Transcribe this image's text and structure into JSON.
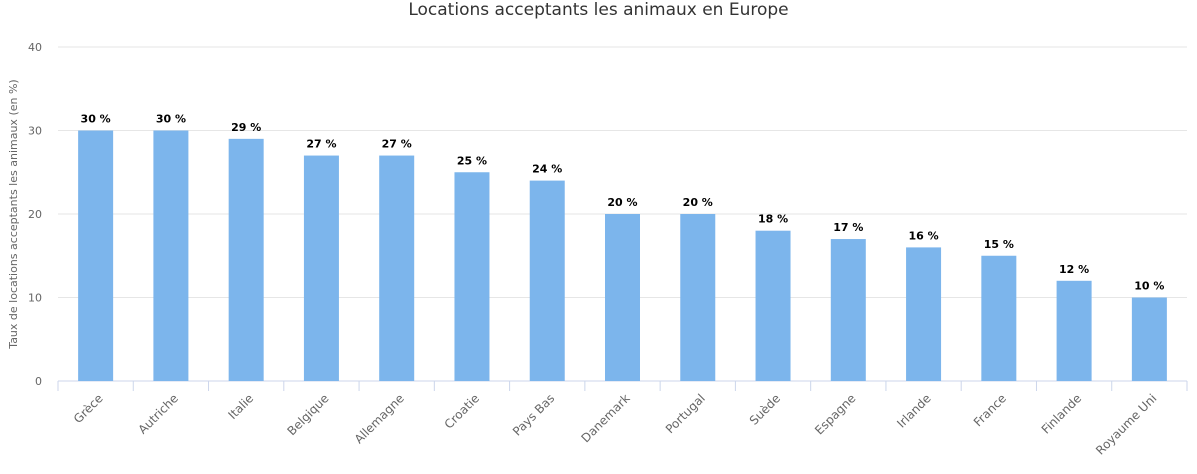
{
  "chart_data": {
    "type": "bar",
    "title": "Locations acceptants les animaux en Europe",
    "xlabel": "",
    "ylabel": "Taux de locations acceptants les animaux (en %)",
    "ylim": [
      0,
      40
    ],
    "yticks": [
      0,
      10,
      20,
      30,
      40
    ],
    "grid": true,
    "legend": "none",
    "categories": [
      "Grèce",
      "Autriche",
      "Italie",
      "Belgique",
      "Allemagne",
      "Croatie",
      "Pays Bas",
      "Danemark",
      "Portugal",
      "Suède",
      "Espagne",
      "Irlande",
      "France",
      "Finlande",
      "Royaume Uni"
    ],
    "values": [
      30,
      30,
      29,
      27,
      27,
      25,
      24,
      20,
      20,
      18,
      17,
      16,
      15,
      12,
      10
    ],
    "data_labels": [
      "30 %",
      "30 %",
      "29 %",
      "27 %",
      "27 %",
      "25 %",
      "24 %",
      "20 %",
      "20 %",
      "18 %",
      "17 %",
      "16 %",
      "15 %",
      "12 %",
      "10 %"
    ],
    "bar_color": "#7cb5ec",
    "grid_color": "#e6e6e6"
  }
}
